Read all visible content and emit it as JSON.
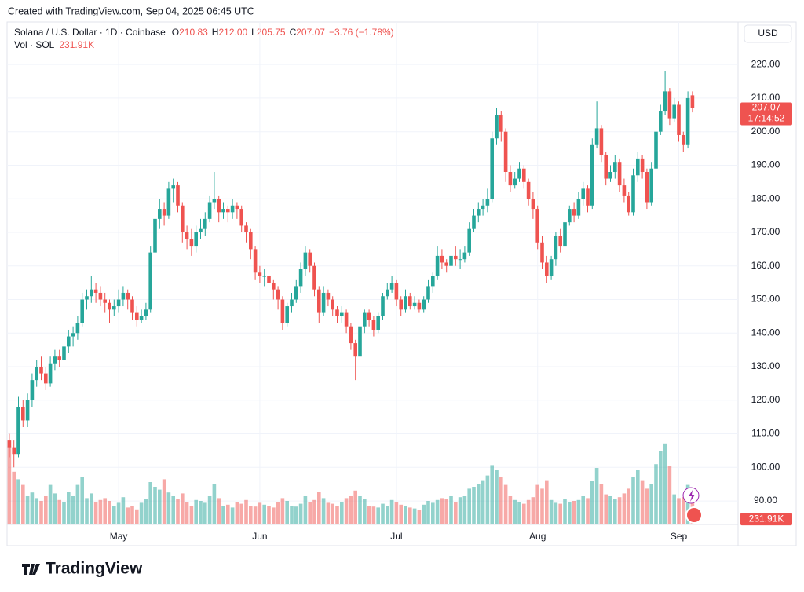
{
  "header": {
    "created": "Created with TradingView.com, Sep 04, 2025 06:45 UTC"
  },
  "chart_data": {
    "type": "candlestick",
    "legend": {
      "symbol": "Solana / U.S. Dollar · 1D · Coinbase",
      "items": [
        {
          "key": "O",
          "value": "210.83"
        },
        {
          "key": "H",
          "value": "212.00"
        },
        {
          "key": "L",
          "value": "205.75"
        },
        {
          "key": "C",
          "value": "207.07"
        }
      ],
      "change": "−3.76 (−1.78%)",
      "volume_title": "Vol · SOL",
      "volume_value": "231.91K"
    },
    "currency": "USD",
    "up_color": "#26a69a",
    "down_color": "#ef5350",
    "ylim": [
      83,
      232.2
    ],
    "yticks": [
      {
        "value": 90,
        "label": "90.00"
      },
      {
        "value": 100,
        "label": "100.00"
      },
      {
        "value": 110,
        "label": "110.00"
      },
      {
        "value": 120,
        "label": "120.00"
      },
      {
        "value": 130,
        "label": "130.00"
      },
      {
        "value": 140,
        "label": "140.00"
      },
      {
        "value": 150,
        "label": "150.00"
      },
      {
        "value": 160,
        "label": "160.00"
      },
      {
        "value": 170,
        "label": "170.00"
      },
      {
        "value": 180,
        "label": "180.00"
      },
      {
        "value": 190,
        "label": "190.00"
      },
      {
        "value": 200,
        "label": "200.00"
      },
      {
        "value": 210,
        "label": "210.00"
      },
      {
        "value": 220,
        "label": "220.00"
      }
    ],
    "xticks": [
      {
        "value": 24,
        "label": "May"
      },
      {
        "value": 55,
        "label": "Jun"
      },
      {
        "value": 85,
        "label": "Jul"
      },
      {
        "value": 116,
        "label": "Aug"
      },
      {
        "value": 147,
        "label": "Sep"
      }
    ],
    "grid": true,
    "last_price": {
      "value": 207.07,
      "label": "207.07",
      "countdown": "17:14:52"
    },
    "last_volume": {
      "value": 231.91,
      "label": "231.91K"
    },
    "volume_ylim": [
      0,
      5317
    ],
    "candles": [
      [
        108,
        110,
        103,
        106
      ],
      [
        106,
        108,
        100,
        104
      ],
      [
        104,
        121,
        103,
        118
      ],
      [
        118,
        120,
        112,
        114
      ],
      [
        114,
        122,
        112,
        120
      ],
      [
        120,
        128,
        118,
        126
      ],
      [
        126,
        132,
        124,
        130
      ],
      [
        130,
        133,
        126,
        128
      ],
      [
        128,
        130,
        123,
        125
      ],
      [
        125,
        133,
        124,
        131
      ],
      [
        131,
        135,
        129,
        133
      ],
      [
        133,
        135,
        130,
        132
      ],
      [
        132,
        138,
        130,
        136
      ],
      [
        136,
        141,
        134,
        139
      ],
      [
        139,
        142,
        136,
        140
      ],
      [
        140,
        145,
        138,
        143
      ],
      [
        143,
        152,
        142,
        150
      ],
      [
        150,
        153,
        147,
        151
      ],
      [
        151,
        157,
        149,
        153
      ],
      [
        153,
        155,
        149,
        152
      ],
      [
        152,
        154,
        148,
        150
      ],
      [
        150,
        152,
        146,
        149
      ],
      [
        149,
        150,
        143,
        147
      ],
      [
        147,
        150,
        145,
        148
      ],
      [
        148,
        153,
        146,
        150
      ],
      [
        150,
        154,
        148,
        152
      ],
      [
        152,
        153,
        147,
        150
      ],
      [
        150,
        151,
        144,
        146
      ],
      [
        146,
        148,
        142,
        144
      ],
      [
        144,
        147,
        143,
        145
      ],
      [
        145,
        149,
        144,
        147
      ],
      [
        147,
        166,
        146,
        164
      ],
      [
        164,
        176,
        162,
        174
      ],
      [
        174,
        180,
        171,
        177
      ],
      [
        177,
        179,
        172,
        175
      ],
      [
        175,
        185,
        174,
        183
      ],
      [
        183,
        186,
        179,
        184
      ],
      [
        184,
        185,
        176,
        178
      ],
      [
        178,
        179,
        167,
        170
      ],
      [
        170,
        172,
        165,
        168
      ],
      [
        168,
        171,
        163,
        166
      ],
      [
        166,
        172,
        164,
        170
      ],
      [
        170,
        174,
        168,
        171
      ],
      [
        171,
        176,
        169,
        174
      ],
      [
        174,
        181,
        173,
        179
      ],
      [
        179,
        188,
        177,
        180
      ],
      [
        180,
        181,
        173,
        176
      ],
      [
        176,
        179,
        174,
        177
      ],
      [
        177,
        178,
        173,
        176
      ],
      [
        176,
        180,
        174,
        178
      ],
      [
        178,
        179,
        174,
        177
      ],
      [
        177,
        178,
        170,
        172
      ],
      [
        172,
        173,
        167,
        170
      ],
      [
        170,
        171,
        162,
        165
      ],
      [
        165,
        166,
        156,
        158
      ],
      [
        158,
        160,
        155,
        157
      ],
      [
        157,
        159,
        154,
        157
      ],
      [
        157,
        158,
        152,
        155
      ],
      [
        155,
        156,
        150,
        153
      ],
      [
        153,
        154,
        147,
        150
      ],
      [
        150,
        151,
        141,
        143
      ],
      [
        143,
        149,
        142,
        148
      ],
      [
        148,
        152,
        146,
        150
      ],
      [
        150,
        156,
        149,
        154
      ],
      [
        154,
        161,
        152,
        159
      ],
      [
        159,
        166,
        157,
        164
      ],
      [
        164,
        165,
        158,
        160
      ],
      [
        160,
        161,
        151,
        153
      ],
      [
        153,
        154,
        143,
        146
      ],
      [
        146,
        154,
        145,
        152
      ],
      [
        152,
        153,
        148,
        150
      ],
      [
        150,
        151,
        145,
        147
      ],
      [
        147,
        148,
        143,
        145
      ],
      [
        145,
        148,
        143,
        146
      ],
      [
        146,
        147,
        140,
        142
      ],
      [
        142,
        143,
        135,
        137
      ],
      [
        137,
        138,
        126,
        133
      ],
      [
        133,
        144,
        132,
        142
      ],
      [
        142,
        147,
        140,
        146
      ],
      [
        146,
        147,
        142,
        144
      ],
      [
        144,
        145,
        139,
        141
      ],
      [
        141,
        146,
        140,
        145
      ],
      [
        145,
        152,
        144,
        151
      ],
      [
        151,
        155,
        150,
        153
      ],
      [
        153,
        157,
        152,
        155
      ],
      [
        155,
        156,
        148,
        150
      ],
      [
        150,
        151,
        145,
        147
      ],
      [
        147,
        153,
        146,
        151
      ],
      [
        151,
        152,
        147,
        148
      ],
      [
        148,
        151,
        147,
        149
      ],
      [
        149,
        150,
        146,
        147
      ],
      [
        147,
        151,
        146,
        150
      ],
      [
        150,
        156,
        149,
        154
      ],
      [
        154,
        158,
        152,
        157
      ],
      [
        157,
        166,
        156,
        163
      ],
      [
        163,
        165,
        159,
        161
      ],
      [
        161,
        162,
        158,
        160
      ],
      [
        160,
        164,
        159,
        163
      ],
      [
        163,
        166,
        160,
        162
      ],
      [
        162,
        165,
        159,
        162
      ],
      [
        162,
        166,
        161,
        164
      ],
      [
        164,
        173,
        163,
        171
      ],
      [
        171,
        177,
        170,
        175
      ],
      [
        175,
        179,
        173,
        177
      ],
      [
        177,
        180,
        175,
        178
      ],
      [
        178,
        183,
        176,
        180
      ],
      [
        180,
        200,
        179,
        198
      ],
      [
        198,
        207,
        196,
        205
      ],
      [
        205,
        206,
        197,
        200
      ],
      [
        200,
        201,
        185,
        188
      ],
      [
        188,
        190,
        182,
        184
      ],
      [
        184,
        188,
        183,
        186
      ],
      [
        186,
        191,
        185,
        189
      ],
      [
        189,
        190,
        183,
        185
      ],
      [
        185,
        186,
        178,
        180
      ],
      [
        180,
        182,
        174,
        177
      ],
      [
        177,
        178,
        165,
        167
      ],
      [
        167,
        169,
        159,
        161
      ],
      [
        161,
        163,
        155,
        157
      ],
      [
        157,
        163,
        156,
        162
      ],
      [
        162,
        170,
        160,
        169
      ],
      [
        169,
        171,
        164,
        166
      ],
      [
        166,
        175,
        165,
        173
      ],
      [
        173,
        178,
        172,
        177
      ],
      [
        177,
        179,
        173,
        175
      ],
      [
        175,
        182,
        174,
        180
      ],
      [
        180,
        185,
        178,
        183
      ],
      [
        183,
        184,
        176,
        178
      ],
      [
        178,
        198,
        177,
        196
      ],
      [
        196,
        209,
        195,
        201
      ],
      [
        201,
        202,
        191,
        193
      ],
      [
        193,
        194,
        184,
        186
      ],
      [
        186,
        190,
        185,
        188
      ],
      [
        188,
        193,
        186,
        191
      ],
      [
        191,
        192,
        182,
        184
      ],
      [
        184,
        186,
        179,
        181
      ],
      [
        181,
        182,
        175,
        176
      ],
      [
        176,
        189,
        175,
        187
      ],
      [
        187,
        194,
        185,
        192
      ],
      [
        192,
        193,
        186,
        188
      ],
      [
        188,
        189,
        177,
        179
      ],
      [
        179,
        191,
        178,
        189
      ],
      [
        189,
        202,
        188,
        200
      ],
      [
        200,
        208,
        199,
        206
      ],
      [
        206,
        218,
        205,
        212
      ],
      [
        212,
        213,
        202,
        204
      ],
      [
        204,
        210,
        203,
        208
      ],
      [
        208,
        209,
        197,
        199
      ],
      [
        199,
        200,
        194,
        196
      ],
      [
        196,
        212,
        195,
        210
      ],
      [
        210.83,
        212,
        205.75,
        207.07
      ]
    ],
    "volume": [
      830,
      560,
      480,
      420,
      300,
      340,
      280,
      250,
      300,
      420,
      330,
      260,
      240,
      350,
      300,
      420,
      500,
      280,
      330,
      240,
      260,
      280,
      250,
      200,
      230,
      290,
      180,
      200,
      160,
      230,
      270,
      450,
      400,
      370,
      480,
      340,
      300,
      270,
      330,
      240,
      200,
      260,
      250,
      230,
      300,
      430,
      280,
      200,
      210,
      180,
      240,
      220,
      260,
      200,
      190,
      230,
      210,
      200,
      180,
      240,
      280,
      250,
      200,
      190,
      220,
      300,
      240,
      260,
      350,
      280,
      230,
      220,
      200,
      240,
      280,
      300,
      360,
      300,
      270,
      200,
      190,
      180,
      220,
      200,
      260,
      240,
      210,
      200,
      180,
      170,
      150,
      210,
      250,
      230,
      260,
      280,
      270,
      300,
      240,
      290,
      300,
      380,
      400,
      430,
      470,
      520,
      630,
      580,
      500,
      420,
      300,
      260,
      240,
      220,
      260,
      290,
      420,
      380,
      470,
      260,
      230,
      220,
      270,
      240,
      250,
      260,
      300,
      280,
      460,
      600,
      430,
      320,
      300,
      270,
      290,
      330,
      380,
      500,
      580,
      470,
      380,
      430,
      640,
      780,
      860,
      620,
      320,
      280,
      290,
      420,
      231.91
    ]
  },
  "footer": {
    "brand": "TradingView"
  }
}
